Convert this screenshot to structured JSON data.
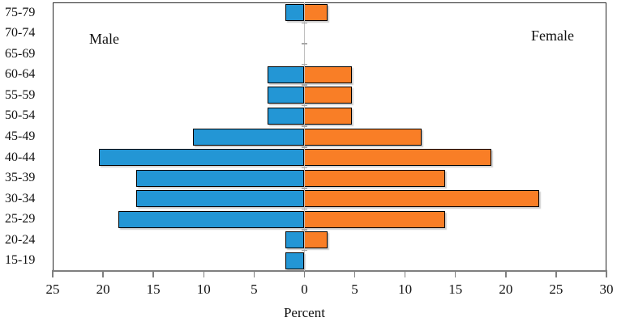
{
  "chart_data": {
    "type": "bar",
    "subtype": "population-pyramid",
    "orientation": "horizontal",
    "title": "",
    "xlabel": "Percent",
    "categories": [
      "75-79",
      "70-74",
      "65-69",
      "60-64",
      "55-59",
      "50-54",
      "45-49",
      "40-44",
      "35-39",
      "30-34",
      "25-29",
      "20-24",
      "15-19"
    ],
    "series": [
      {
        "name": "Male",
        "side": "left",
        "color": "#2396D5",
        "values": [
          1.9,
          0,
          0,
          3.7,
          3.7,
          3.7,
          11.1,
          20.4,
          16.7,
          16.7,
          18.5,
          1.9,
          1.9
        ]
      },
      {
        "name": "Female",
        "side": "right",
        "color": "#F97E26",
        "values": [
          2.3,
          0,
          0,
          4.7,
          4.7,
          4.7,
          11.6,
          18.6,
          14.0,
          23.3,
          14.0,
          2.3,
          0
        ]
      }
    ],
    "x_axis": {
      "left_max": 25,
      "right_max": 30,
      "tick_step": 5,
      "tick_values": [
        -25,
        -20,
        -15,
        -10,
        -5,
        0,
        5,
        10,
        15,
        20,
        25,
        30
      ],
      "tick_labels": [
        "25",
        "20",
        "15",
        "10",
        "5",
        "0",
        "5",
        "10",
        "15",
        "20",
        "25",
        "30"
      ]
    },
    "annotations": [
      {
        "text": "Male",
        "position": "upper-left"
      },
      {
        "text": "Female",
        "position": "upper-right"
      }
    ],
    "grid": "off",
    "legend": "none",
    "bar_border_color": "#000000",
    "axis_color": "#7F7F7F",
    "center_axis_color": "#BFBFBF"
  }
}
